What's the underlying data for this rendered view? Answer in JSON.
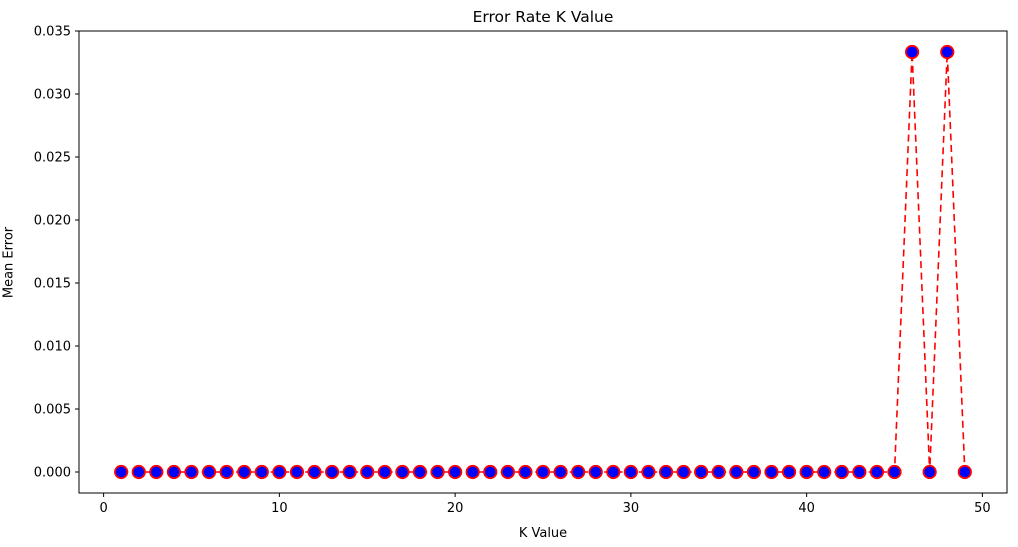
{
  "figure": {
    "title": "Error Rate K Value",
    "xlabel": "K Value",
    "ylabel": "Mean Error"
  },
  "chart_data": {
    "type": "line",
    "title": "Error Rate K Value",
    "xlabel": "K Value",
    "ylabel": "Mean Error",
    "x": [
      1,
      2,
      3,
      4,
      5,
      6,
      7,
      8,
      9,
      10,
      11,
      12,
      13,
      14,
      15,
      16,
      17,
      18,
      19,
      20,
      21,
      22,
      23,
      24,
      25,
      26,
      27,
      28,
      29,
      30,
      31,
      32,
      33,
      34,
      35,
      36,
      37,
      38,
      39,
      40,
      41,
      42,
      43,
      44,
      45,
      46,
      47,
      48,
      49
    ],
    "values": [
      0,
      0,
      0,
      0,
      0,
      0,
      0,
      0,
      0,
      0,
      0,
      0,
      0,
      0,
      0,
      0,
      0,
      0,
      0,
      0,
      0,
      0,
      0,
      0,
      0,
      0,
      0,
      0,
      0,
      0,
      0,
      0,
      0,
      0,
      0,
      0,
      0,
      0,
      0,
      0,
      0,
      0,
      0,
      0,
      0,
      0.0333333,
      0,
      0.0333333,
      0
    ],
    "xlim": [
      -1.4,
      51.4
    ],
    "ylim": [
      -0.0016667,
      0.035
    ],
    "xtick_values": [
      0,
      10,
      20,
      30,
      40,
      50
    ],
    "xtick_labels": [
      "0",
      "10",
      "20",
      "30",
      "40",
      "50"
    ],
    "ytick_values": [
      0.0,
      0.005,
      0.01,
      0.015,
      0.02,
      0.025,
      0.03,
      0.035
    ],
    "ytick_labels": [
      "0.000",
      "0.005",
      "0.010",
      "0.015",
      "0.020",
      "0.025",
      "0.030",
      "0.035"
    ],
    "grid": false,
    "legend": "none",
    "line_color": "#ff0000",
    "line_style": "dashed",
    "marker": "o",
    "marker_face_color": "#0000ff",
    "marker_edge_color": "#ff0000",
    "axis_color": "#000000",
    "background_color": "#ffffff"
  }
}
